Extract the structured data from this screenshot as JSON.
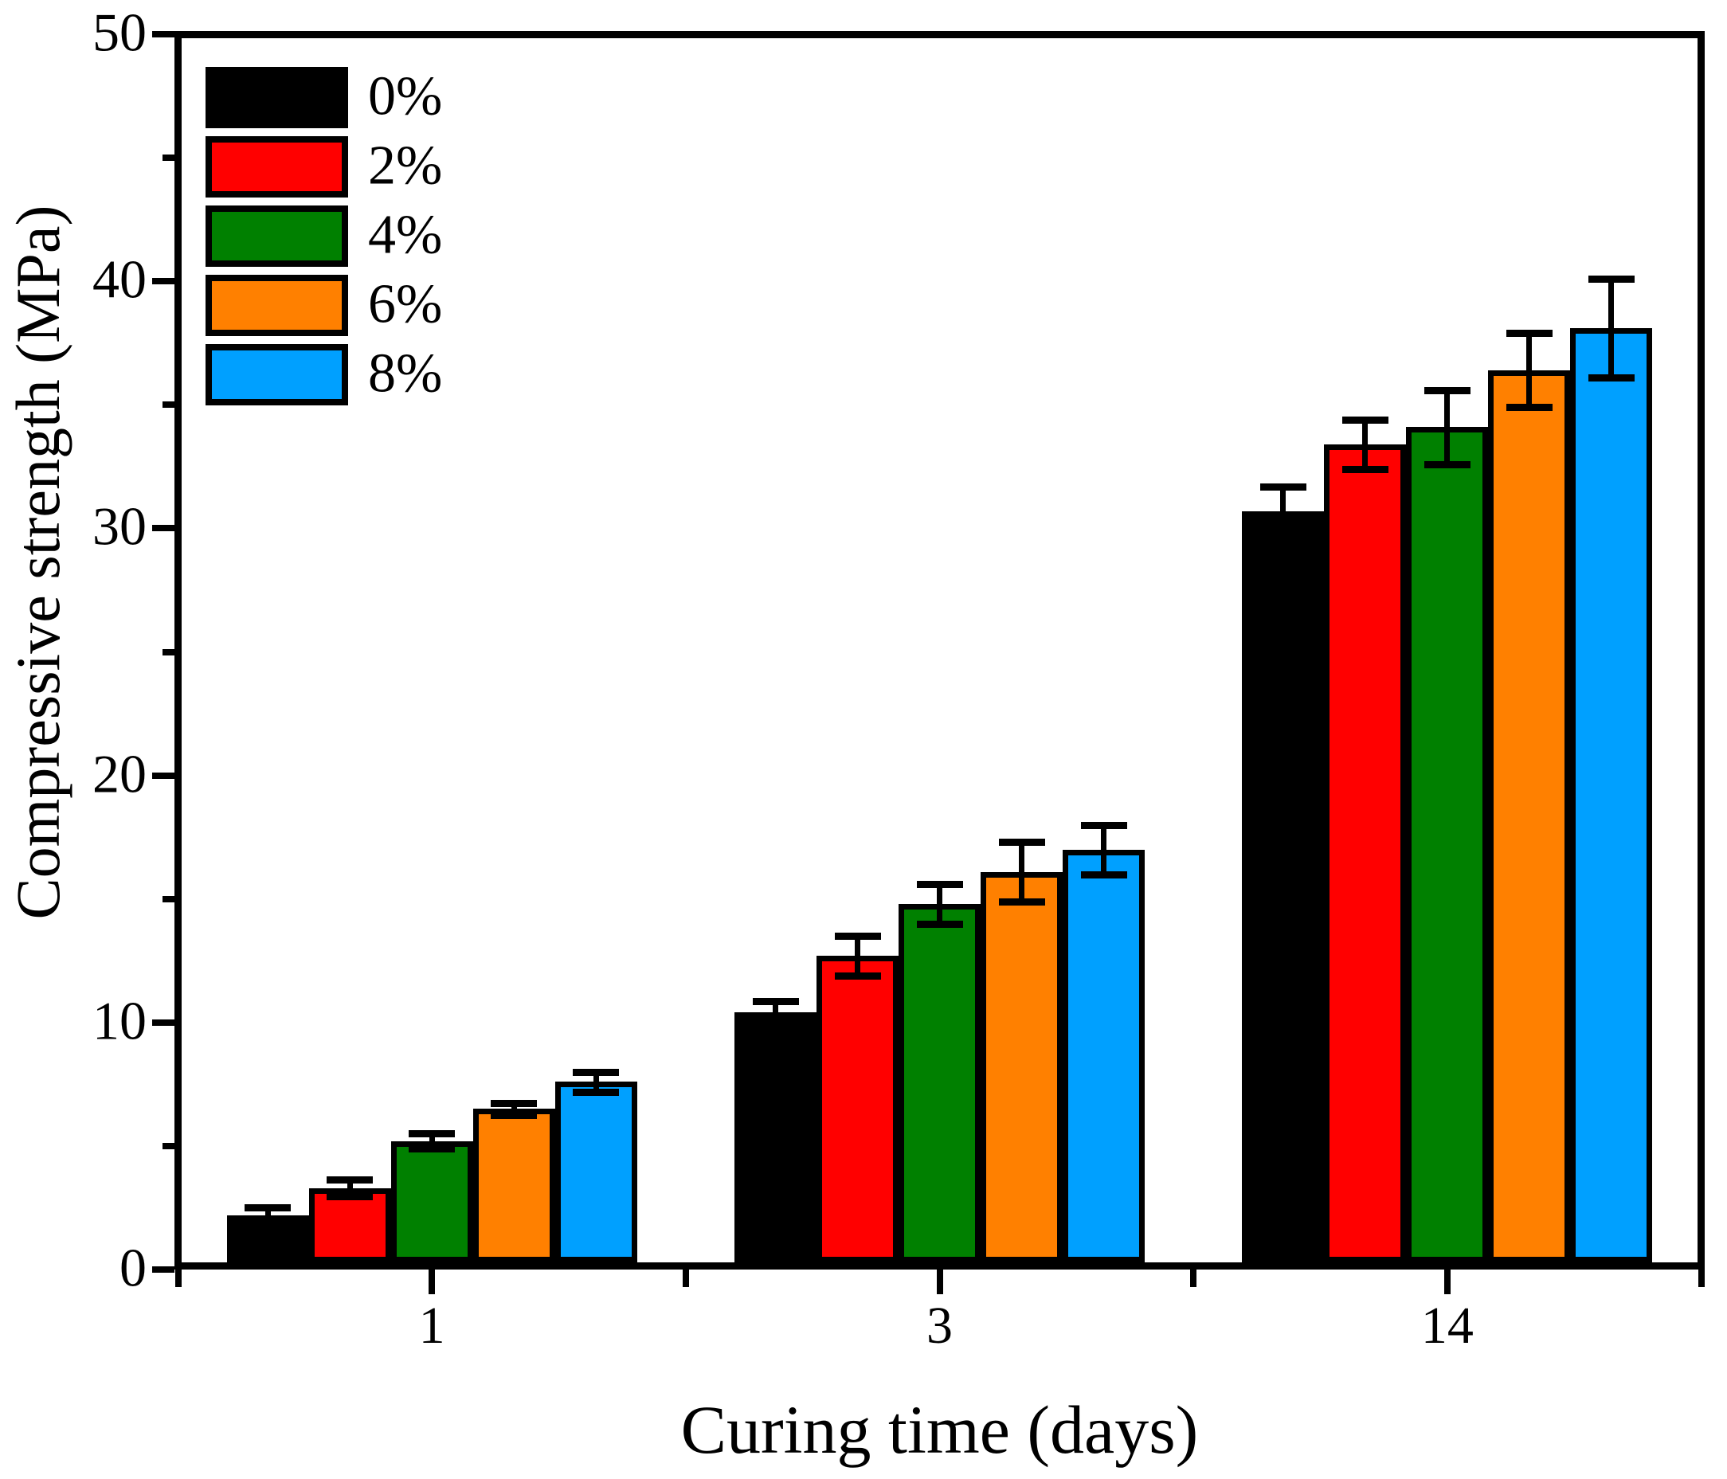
{
  "chart_data": {
    "type": "bar",
    "title": "",
    "xlabel": "Curing time (days)",
    "ylabel": "Compressive strength (MPa)",
    "categories": [
      "1",
      "3",
      "14"
    ],
    "series": [
      {
        "name": "0%",
        "color": "#000000",
        "values": [
          2.2,
          10.4,
          30.7
        ],
        "errors": [
          0.3,
          0.45,
          1.0
        ]
      },
      {
        "name": "2%",
        "color": "#FF0000",
        "values": [
          3.3,
          12.7,
          33.4
        ],
        "errors": [
          0.35,
          0.8,
          1.0
        ]
      },
      {
        "name": "4%",
        "color": "#008000",
        "values": [
          5.2,
          14.8,
          34.1
        ],
        "errors": [
          0.3,
          0.8,
          1.5
        ]
      },
      {
        "name": "6%",
        "color": "#FF8000",
        "values": [
          6.5,
          16.1,
          36.4
        ],
        "errors": [
          0.25,
          1.2,
          1.5
        ]
      },
      {
        "name": "8%",
        "color": "#00A0FF",
        "values": [
          7.6,
          17.0,
          38.1
        ],
        "errors": [
          0.4,
          1.0,
          2.0
        ]
      }
    ],
    "y_axis": {
      "min": 0,
      "max": 50,
      "major_step": 10,
      "minor_step": 5,
      "tick_labels": [
        "0",
        "10",
        "20",
        "30",
        "40",
        "50"
      ]
    },
    "x_axis": {
      "tick_labels": [
        "1",
        "3",
        "14"
      ]
    },
    "legend": {
      "position": "top-left",
      "entries": [
        "0%",
        "2%",
        "4%",
        "6%",
        "8%"
      ]
    },
    "grid": false,
    "frame": true,
    "axis_color": "#000000",
    "error_bar_color": "#000000",
    "background_color": "#FFFFFF"
  }
}
